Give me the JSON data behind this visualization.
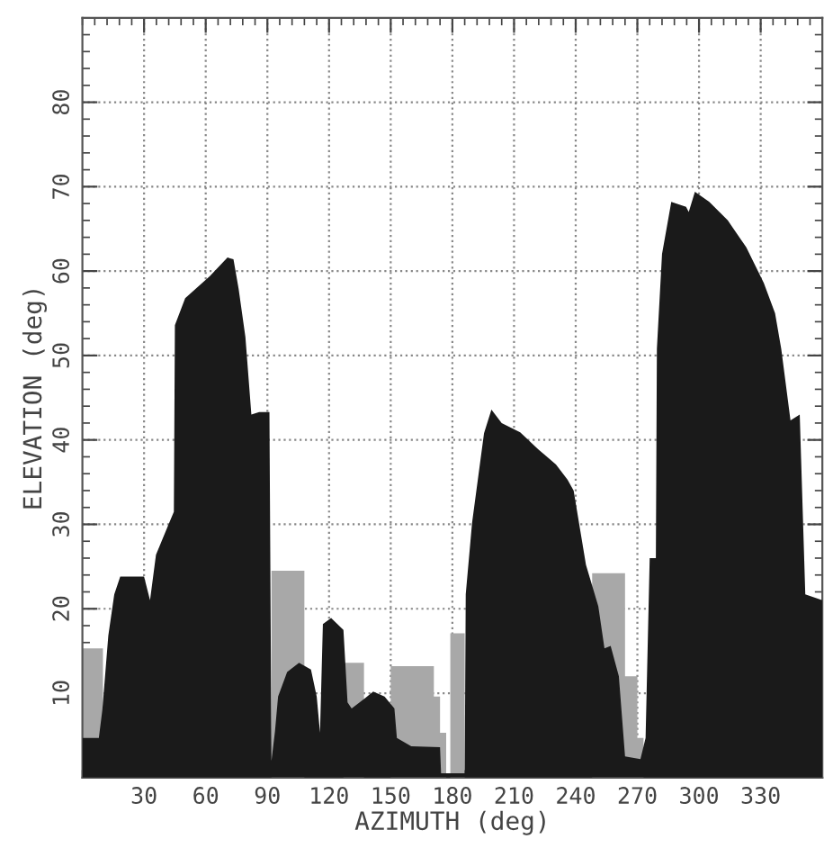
{
  "chart_data": {
    "type": "area",
    "xlabel": "AZIMUTH (deg)",
    "ylabel": "ELEVATION (deg)",
    "xlim": [
      0,
      360
    ],
    "xticks": [
      30,
      60,
      90,
      120,
      150,
      180,
      210,
      240,
      270,
      300,
      330
    ],
    "ylim": [
      0,
      90
    ],
    "yticks": [
      10,
      20,
      30,
      40,
      50,
      60,
      70,
      80
    ],
    "grid": true,
    "series": [
      {
        "color": "#a8a8a8",
        "x": [
          0,
          10
        ],
        "values": [
          15.3,
          15.3
        ]
      },
      {
        "color": "#a8a8a8",
        "x": [
          92,
          108
        ],
        "values": [
          24.5,
          24.5
        ]
      },
      {
        "color": "#a8a8a8",
        "x": [
          127,
          137
        ],
        "values": [
          13.6,
          13.6
        ]
      },
      {
        "color": "#a8a8a8",
        "x": [
          150,
          171,
          171,
          174,
          174,
          177
        ],
        "values": [
          13.2,
          13.2,
          9.6,
          9.6,
          5.3,
          5.3
        ]
      },
      {
        "color": "#a8a8a8",
        "x": [
          179,
          186
        ],
        "values": [
          17.1,
          17.1
        ]
      },
      {
        "color": "#a8a8a8",
        "x": [
          248,
          264,
          264,
          270,
          270,
          273
        ],
        "values": [
          24.2,
          24.2,
          12,
          12,
          4.7,
          4.7
        ]
      },
      {
        "type": "area",
        "color": "#1a1a1a",
        "x": [
          0,
          8,
          9.7,
          12.6,
          15.5,
          18.4,
          30,
          32.9,
          35.8,
          41.6,
          44.5,
          45,
          50,
          62,
          70.6,
          73.5,
          76,
          79.3,
          82.2,
          86,
          91,
          92,
          93.7,
          95.2,
          99.6,
          105.4,
          111.2,
          114,
          115.6,
          117,
          121,
          127,
          129,
          131,
          137,
          141.5,
          147,
          151.8,
          153,
          160,
          174,
          174.5,
          186,
          186.5,
          189.6,
          195.4,
          199,
          204,
          213,
          221.7,
          230.4,
          236,
          239,
          245,
          251,
          254,
          257,
          261,
          264,
          271.5,
          274,
          276,
          279,
          279.5,
          282,
          286.5,
          293.7,
          295,
          298,
          305,
          314,
          323,
          331.5,
          337,
          340,
          344.5,
          349,
          351.7,
          360
        ],
        "values": [
          4.7,
          4.7,
          8,
          16.8,
          21.7,
          23.8,
          23.8,
          21,
          26.4,
          29.8,
          31.5,
          53.6,
          56.8,
          59.4,
          61.6,
          61.4,
          57.9,
          52.2,
          43,
          43.3,
          43.3,
          2,
          5.5,
          9.6,
          12.5,
          13.6,
          12.8,
          9.6,
          5.3,
          18.2,
          18.9,
          17.5,
          8.9,
          8.2,
          9.3,
          10.2,
          9.6,
          8.2,
          4.7,
          3.7,
          3.6,
          0.5,
          0.5,
          21.7,
          30.2,
          40.8,
          43.6,
          42,
          40.9,
          38.9,
          37.1,
          35.3,
          34,
          25.2,
          20.3,
          15.3,
          15.6,
          12,
          2.5,
          2.2,
          4.7,
          26,
          26,
          50.8,
          62,
          68.2,
          67.6,
          67,
          69.4,
          68.2,
          66,
          62.8,
          58.6,
          55,
          50.8,
          42.3,
          43,
          21.7,
          21
        ]
      }
    ]
  }
}
